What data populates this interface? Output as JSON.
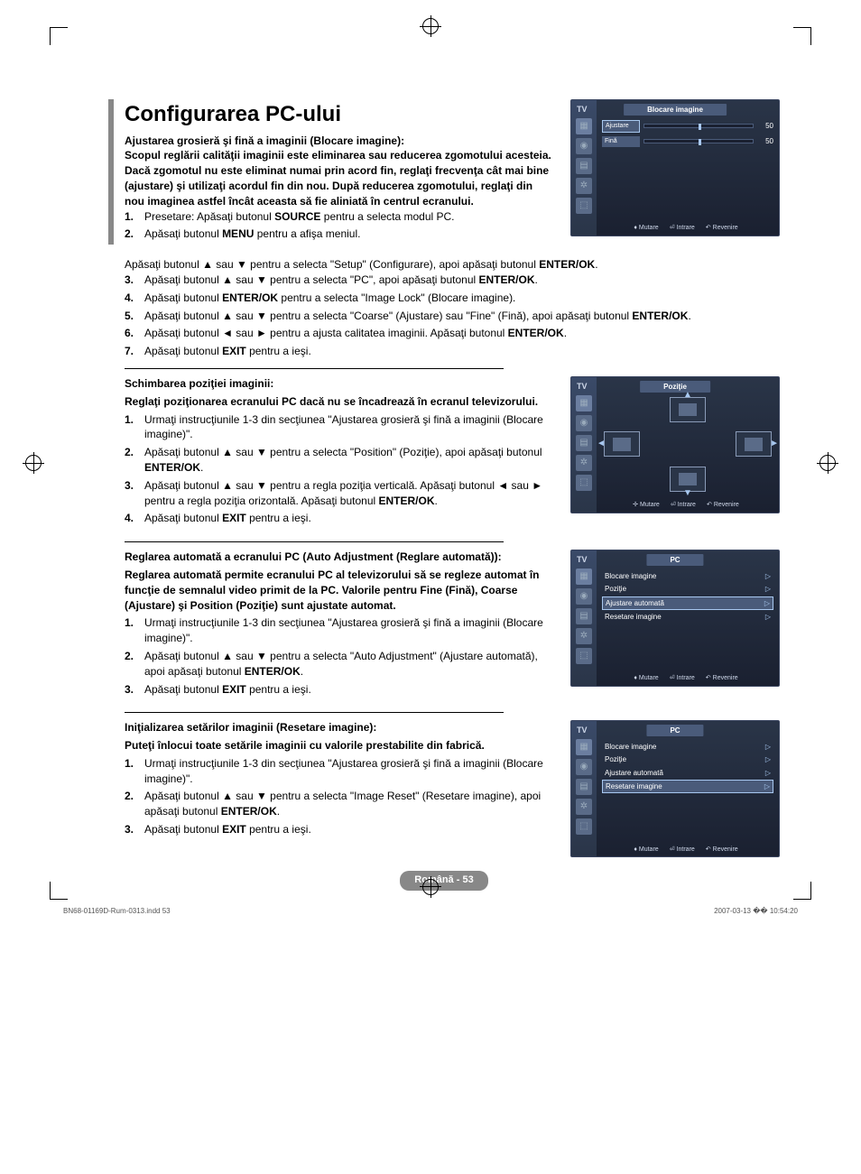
{
  "title": "Configurarea PC-ului",
  "intro_lines": [
    "Ajustarea grosieră şi fină a imaginii (Blocare imagine):",
    "Scopul reglării calităţii imaginii este eliminarea sau reducerea zgomotului acesteia.",
    "Dacă zgomotul nu este eliminat numai prin acord fin, reglaţi frecvenţa cât mai bine (ajustare) şi utilizaţi acordul fin din nou. După reducerea zgomotului, reglaţi din nou imaginea astfel încât aceasta să fie aliniată în centrul ecranului."
  ],
  "sec1_steps": {
    "s1a": "Presetare: Apăsaţi butonul ",
    "s1b": "SOURCE",
    "s1c": " pentru a selecta modul PC.",
    "s2a": "Apăsaţi butonul ",
    "s2b": "MENU",
    "s2c": " pentru a afişa meniul.",
    "line_after_2": "Apăsaţi butonul ▲ sau ▼ pentru a selecta \"Setup\" (Configurare), apoi apăsaţi butonul ",
    "line_after_2b": "ENTER/OK",
    "s3": "Apăsaţi butonul ▲ sau ▼ pentru a selecta \"PC\", apoi apăsaţi butonul ",
    "s3b": "ENTER/OK",
    "s4": "Apăsaţi butonul ",
    "s4b": "ENTER/OK",
    "s4c": " pentru a selecta \"Image Lock\" (Blocare imagine).",
    "s5": "Apăsaţi butonul ▲ sau ▼ pentru a selecta \"Coarse\" (Ajustare) sau \"Fine\" (Fină), apoi apăsaţi butonul ",
    "s5b": "ENTER/OK",
    "s6": "Apăsaţi butonul ◄ sau ► pentru a ajusta calitatea imaginii. Apăsaţi butonul ",
    "s6b": "ENTER/OK",
    "s7": "Apăsaţi butonul ",
    "s7b": "EXIT",
    "s7c": " pentru a ieşi."
  },
  "sec2_head1": "Schimbarea poziţiei imaginii:",
  "sec2_head2": "Reglaţi poziţionarea ecranului PC dacă nu se încadrează în ecranul televizorului.",
  "sec2_steps": {
    "s1": "Urmaţi instrucţiunile 1-3 din secţiunea \"Ajustarea grosieră şi fină a imaginii (Blocare imagine)\".",
    "s2": "Apăsaţi butonul ▲ sau ▼ pentru a selecta \"Position\" (Poziţie), apoi apăsaţi butonul ",
    "s2b": "ENTER/OK",
    "s3": "Apăsaţi butonul ▲ sau ▼ pentru a regla poziţia verticală. Apăsaţi butonul ◄ sau ► pentru a regla poziţia orizontală. Apăsaţi butonul ",
    "s3b": "ENTER/OK",
    "s4": "Apăsaţi butonul ",
    "s4b": "EXIT",
    "s4c": " pentru a ieşi."
  },
  "sec3_head1": "Reglarea automată a ecranului PC (Auto Adjustment (Reglare automată)):",
  "sec3_head2": "Reglarea automată permite ecranului PC al televizorului să se regleze automat în funcţie de semnalul video primit de la PC. Valorile pentru Fine (Fină), Coarse (Ajustare) şi Position (Poziţie) sunt ajustate automat.",
  "sec3_steps": {
    "s1": "Urmaţi instrucţiunile 1-3 din secţiunea \"Ajustarea grosieră şi fină a imaginii (Blocare imagine)\".",
    "s2": "Apăsaţi butonul ▲ sau ▼ pentru a selecta \"Auto Adjustment\" (Ajustare automată), apoi apăsaţi butonul ",
    "s2b": "ENTER/OK",
    "s3": "Apăsaţi butonul ",
    "s3b": "EXIT",
    "s3c": " pentru a ieşi."
  },
  "sec4_head1": "Iniţializarea setărilor imaginii (Resetare imagine):",
  "sec4_head2": "Puteţi înlocui toate setările imaginii cu valorile prestabilite din fabrică.",
  "sec4_steps": {
    "s1": "Urmaţi instrucţiunile 1-3 din secţiunea \"Ajustarea grosieră şi fină a imaginii (Blocare imagine)\".",
    "s2": "Apăsaţi butonul ▲ sau ▼ pentru a selecta \"Image Reset\" (Resetare imagine), apoi apăsaţi butonul ",
    "s2b": "ENTER/OK",
    "s3": "Apăsaţi butonul ",
    "s3b": "EXIT",
    "s3c": " pentru a ieşi."
  },
  "osd": {
    "tv_label": "TV",
    "footer_move": "Mutare",
    "footer_enter": "Intrare",
    "footer_return": "Revenire",
    "osd1": {
      "title": "Blocare imagine",
      "row1_label": "Ajustare",
      "row1_val": "50",
      "row2_label": "Fină",
      "row2_val": "50"
    },
    "osd2": {
      "title": "Poziţie"
    },
    "osd3": {
      "title": "PC",
      "items": [
        "Blocare imagine",
        "Poziţie",
        "Ajustare automată",
        "Resetare imagine"
      ],
      "selected": 2
    },
    "osd4": {
      "title": "PC",
      "items": [
        "Blocare imagine",
        "Poziţie",
        "Ajustare automată",
        "Resetare imagine"
      ],
      "selected": 3
    }
  },
  "page_badge": "Română - 53",
  "footer_left": "BN68-01169D-Rum-0313.indd   53",
  "footer_right": "2007-03-13   �� 10:54:20"
}
